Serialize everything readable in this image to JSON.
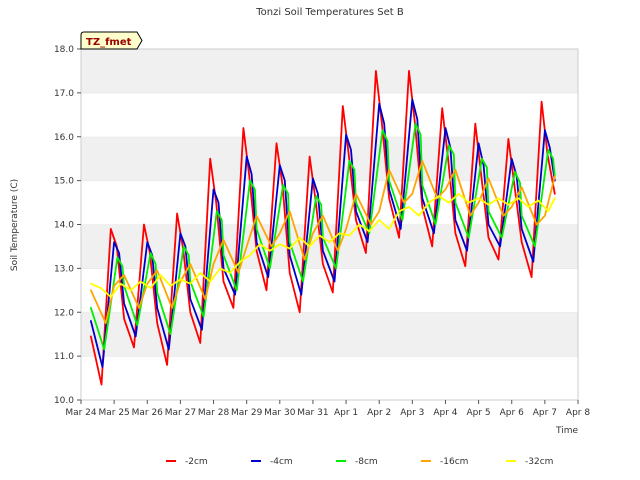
{
  "chart_data": {
    "type": "line",
    "title": "Tonzi Soil Temperatures Set B",
    "xlabel": "Time",
    "ylabel": "Soil Temperature (C)",
    "annotation": "TZ_fmet",
    "ylim": [
      10.0,
      18.0
    ],
    "yticks": [
      10.0,
      11.0,
      12.0,
      13.0,
      14.0,
      15.0,
      16.0,
      17.0,
      18.0
    ],
    "ytick_labels": [
      "10.0",
      "11.0",
      "12.0",
      "13.0",
      "14.0",
      "15.0",
      "16.0",
      "17.0",
      "18.0"
    ],
    "xlim": [
      0,
      15
    ],
    "xticks": [
      0,
      1,
      2,
      3,
      4,
      5,
      6,
      7,
      8,
      9,
      10,
      11,
      12,
      13,
      14,
      15
    ],
    "xtick_labels": [
      "Mar 24",
      "Mar 25",
      "Mar 26",
      "Mar 27",
      "Mar 28",
      "Mar 29",
      "Mar 30",
      "Mar 31",
      "Apr 1",
      "Apr 2",
      "Apr 3",
      "Apr 4",
      "Apr 5",
      "Apr 6",
      "Apr 7",
      "Apr 8"
    ],
    "x_unit_note": "days since Mar 24",
    "grid": "horizontal bands",
    "legend_position": "bottom",
    "series": [
      {
        "name": "-2cm",
        "color": "#ff0000",
        "x": [
          0.3,
          0.62,
          0.9,
          1.08,
          1.3,
          1.6,
          1.9,
          2.08,
          2.3,
          2.6,
          2.9,
          3.08,
          3.3,
          3.6,
          3.9,
          4.08,
          4.3,
          4.6,
          4.9,
          5.08,
          5.3,
          5.6,
          5.9,
          6.08,
          6.3,
          6.6,
          6.9,
          7.08,
          7.3,
          7.6,
          7.9,
          8.08,
          8.3,
          8.6,
          8.9,
          9.08,
          9.3,
          9.6,
          9.9,
          10.08,
          10.3,
          10.6,
          10.9,
          11.08,
          11.3,
          11.6,
          11.9,
          12.08,
          12.3,
          12.6,
          12.9,
          13.08,
          13.3,
          13.6,
          13.9,
          14.08,
          14.3
        ],
        "y": [
          11.45,
          10.35,
          13.9,
          13.5,
          11.85,
          11.2,
          14.0,
          13.35,
          11.75,
          10.8,
          14.25,
          13.45,
          12.0,
          11.3,
          15.5,
          14.5,
          12.7,
          12.1,
          16.2,
          15.1,
          13.4,
          12.5,
          15.85,
          14.9,
          12.9,
          12.0,
          15.55,
          14.55,
          13.1,
          12.45,
          16.7,
          15.6,
          14.1,
          13.35,
          17.5,
          16.3,
          14.6,
          13.7,
          17.5,
          16.3,
          14.4,
          13.5,
          16.65,
          15.5,
          13.8,
          13.05,
          16.3,
          15.1,
          13.7,
          13.2,
          15.95,
          14.9,
          13.6,
          12.8,
          16.8,
          15.6,
          14.7
        ]
      },
      {
        "name": "-4cm",
        "color": "#0000cc",
        "x": [
          0.3,
          0.65,
          1.0,
          1.15,
          1.3,
          1.65,
          2.0,
          2.15,
          2.3,
          2.65,
          3.0,
          3.15,
          3.3,
          3.65,
          4.0,
          4.15,
          4.3,
          4.65,
          5.0,
          5.15,
          5.3,
          5.65,
          6.0,
          6.15,
          6.3,
          6.65,
          7.0,
          7.15,
          7.3,
          7.65,
          8.0,
          8.15,
          8.3,
          8.65,
          9.0,
          9.15,
          9.3,
          9.65,
          10.0,
          10.15,
          10.3,
          10.65,
          11.0,
          11.15,
          11.3,
          11.65,
          12.0,
          12.15,
          12.3,
          12.65,
          13.0,
          13.15,
          13.3,
          13.65,
          14.0,
          14.15,
          14.3
        ],
        "y": [
          11.8,
          10.75,
          13.6,
          13.35,
          12.2,
          11.45,
          13.6,
          13.3,
          12.1,
          11.15,
          13.8,
          13.5,
          12.3,
          11.6,
          14.8,
          14.5,
          13.0,
          12.4,
          15.55,
          15.15,
          13.6,
          12.8,
          15.35,
          15.0,
          13.3,
          12.4,
          15.05,
          14.7,
          13.4,
          12.7,
          16.05,
          15.7,
          14.3,
          13.6,
          16.75,
          16.3,
          14.8,
          13.9,
          16.85,
          16.4,
          14.6,
          13.8,
          16.2,
          15.75,
          14.1,
          13.4,
          15.85,
          15.35,
          14.0,
          13.5,
          15.5,
          15.1,
          13.9,
          13.15,
          16.15,
          15.75,
          15.0
        ]
      },
      {
        "name": "-8cm",
        "color": "#00ee00",
        "x": [
          0.3,
          0.7,
          1.1,
          1.25,
          1.3,
          1.7,
          2.1,
          2.25,
          2.3,
          2.7,
          3.1,
          3.25,
          3.3,
          3.7,
          4.1,
          4.25,
          4.3,
          4.7,
          5.1,
          5.25,
          5.3,
          5.7,
          6.1,
          6.25,
          6.3,
          6.7,
          7.1,
          7.25,
          7.3,
          7.7,
          8.1,
          8.25,
          8.3,
          8.7,
          9.1,
          9.25,
          9.3,
          9.7,
          10.1,
          10.25,
          10.3,
          10.7,
          11.1,
          11.25,
          11.3,
          11.7,
          12.1,
          12.25,
          12.3,
          12.7,
          13.1,
          13.25,
          13.3,
          13.7,
          14.1,
          14.25,
          14.3
        ],
        "y": [
          12.1,
          11.15,
          13.25,
          13.05,
          12.6,
          11.7,
          13.35,
          13.1,
          12.45,
          11.5,
          13.5,
          13.3,
          12.7,
          11.9,
          14.3,
          14.1,
          13.3,
          12.5,
          15.0,
          14.8,
          13.9,
          13.0,
          14.9,
          14.7,
          13.6,
          12.7,
          14.65,
          14.45,
          13.7,
          13.0,
          15.45,
          15.25,
          14.5,
          13.8,
          16.15,
          15.9,
          15.0,
          14.1,
          16.3,
          16.05,
          14.9,
          14.0,
          15.8,
          15.6,
          14.5,
          13.7,
          15.5,
          15.3,
          14.3,
          13.7,
          15.2,
          14.95,
          14.2,
          13.5,
          15.7,
          15.5,
          15.1
        ]
      },
      {
        "name": "-16cm",
        "color": "#ffa500",
        "x": [
          0.3,
          0.75,
          1.0,
          1.3,
          1.75,
          2.0,
          2.3,
          2.75,
          3.0,
          3.3,
          3.75,
          4.0,
          4.3,
          4.75,
          5.0,
          5.3,
          5.75,
          6.0,
          6.3,
          6.75,
          7.0,
          7.3,
          7.75,
          8.0,
          8.3,
          8.75,
          9.0,
          9.3,
          9.75,
          10.0,
          10.3,
          10.75,
          11.0,
          11.3,
          11.75,
          12.0,
          12.3,
          12.75,
          13.0,
          13.3,
          13.75,
          14.0,
          14.3
        ],
        "y": [
          12.5,
          11.75,
          12.6,
          12.85,
          12.1,
          12.65,
          12.95,
          12.1,
          12.7,
          13.1,
          12.3,
          13.1,
          13.65,
          12.9,
          13.5,
          14.2,
          13.5,
          13.8,
          14.3,
          13.2,
          13.8,
          14.2,
          13.4,
          13.9,
          14.7,
          14.0,
          14.3,
          15.25,
          14.5,
          14.7,
          15.45,
          14.6,
          14.8,
          15.25,
          14.2,
          14.5,
          15.05,
          14.2,
          14.4,
          14.85,
          14.0,
          14.2,
          15.1
        ]
      },
      {
        "name": "-32cm",
        "color": "#ffff00",
        "x": [
          0.3,
          0.6,
          0.9,
          1.2,
          1.5,
          1.8,
          2.1,
          2.4,
          2.7,
          3.0,
          3.3,
          3.6,
          3.9,
          4.2,
          4.5,
          4.8,
          5.1,
          5.4,
          5.7,
          6.0,
          6.3,
          6.6,
          6.9,
          7.2,
          7.5,
          7.8,
          8.1,
          8.4,
          8.7,
          9.0,
          9.3,
          9.6,
          9.9,
          10.2,
          10.5,
          10.8,
          11.1,
          11.4,
          11.7,
          12.0,
          12.3,
          12.6,
          12.9,
          13.2,
          13.5,
          13.8,
          14.1,
          14.3
        ],
        "y": [
          12.65,
          12.55,
          12.35,
          12.65,
          12.5,
          12.7,
          12.55,
          12.85,
          12.6,
          12.75,
          12.65,
          12.9,
          12.7,
          13.0,
          12.9,
          13.15,
          13.3,
          13.55,
          13.4,
          13.55,
          13.45,
          13.7,
          13.5,
          13.75,
          13.6,
          13.8,
          13.75,
          14.0,
          13.85,
          14.1,
          13.9,
          14.3,
          14.4,
          14.2,
          14.5,
          14.65,
          14.5,
          14.7,
          14.5,
          14.6,
          14.45,
          14.6,
          14.45,
          14.6,
          14.4,
          14.55,
          14.3,
          14.6
        ]
      }
    ]
  }
}
